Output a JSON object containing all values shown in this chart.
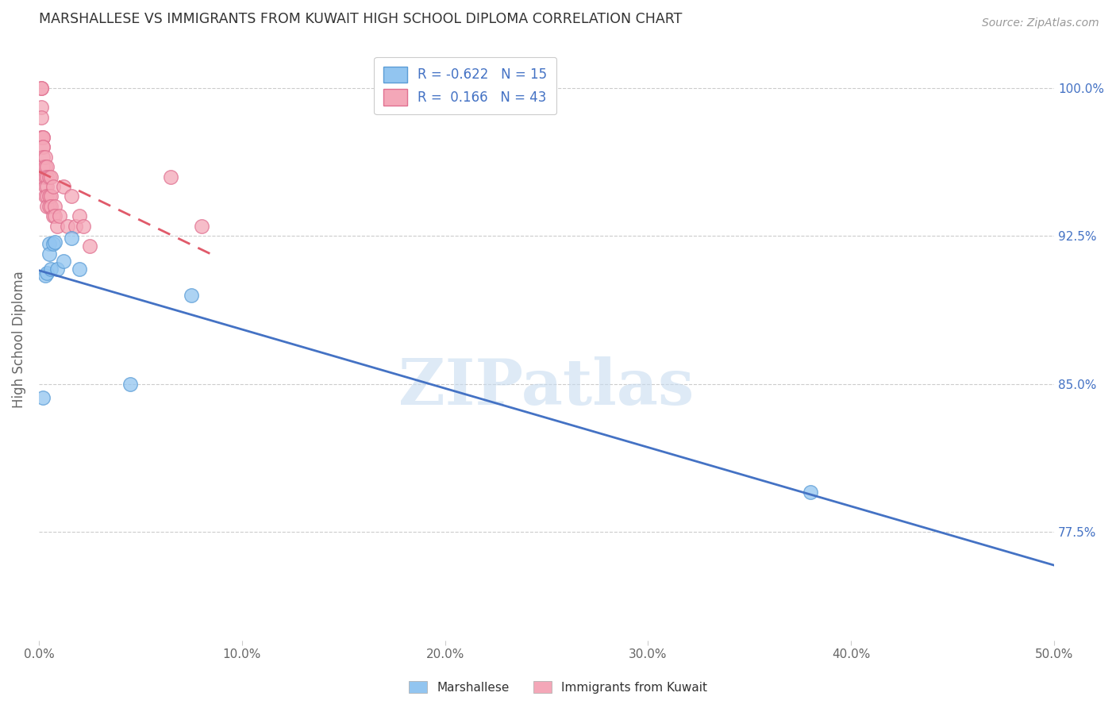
{
  "title": "MARSHALLESE VS IMMIGRANTS FROM KUWAIT HIGH SCHOOL DIPLOMA CORRELATION CHART",
  "source": "Source: ZipAtlas.com",
  "ylabel": "High School Diploma",
  "ytick_labels": [
    "100.0%",
    "92.5%",
    "85.0%",
    "77.5%"
  ],
  "ytick_values": [
    1.0,
    0.925,
    0.85,
    0.775
  ],
  "xlim": [
    0.0,
    0.5
  ],
  "ylim": [
    0.72,
    1.025
  ],
  "xtick_values": [
    0.0,
    0.1,
    0.2,
    0.3,
    0.4,
    0.5
  ],
  "xtick_labels": [
    "0.0%",
    "10.0%",
    "20.0%",
    "30.0%",
    "40.0%",
    "50.0%"
  ],
  "watermark": "ZIPatlas",
  "marshallese_x": [
    0.002,
    0.003,
    0.004,
    0.005,
    0.005,
    0.006,
    0.007,
    0.008,
    0.009,
    0.012,
    0.016,
    0.02,
    0.045,
    0.075,
    0.38
  ],
  "marshallese_y": [
    0.843,
    0.905,
    0.906,
    0.921,
    0.916,
    0.908,
    0.921,
    0.922,
    0.908,
    0.912,
    0.924,
    0.908,
    0.85,
    0.895,
    0.795
  ],
  "kuwait_x": [
    0.001,
    0.001,
    0.001,
    0.001,
    0.001,
    0.002,
    0.002,
    0.002,
    0.002,
    0.002,
    0.002,
    0.002,
    0.003,
    0.003,
    0.003,
    0.003,
    0.003,
    0.004,
    0.004,
    0.004,
    0.004,
    0.004,
    0.005,
    0.005,
    0.005,
    0.006,
    0.006,
    0.006,
    0.007,
    0.007,
    0.008,
    0.008,
    0.009,
    0.01,
    0.012,
    0.014,
    0.016,
    0.018,
    0.02,
    0.022,
    0.025,
    0.065,
    0.08
  ],
  "kuwait_y": [
    1.0,
    1.0,
    0.99,
    0.985,
    0.975,
    0.975,
    0.975,
    0.97,
    0.97,
    0.965,
    0.96,
    0.955,
    0.965,
    0.96,
    0.955,
    0.95,
    0.945,
    0.96,
    0.955,
    0.95,
    0.945,
    0.94,
    0.955,
    0.945,
    0.94,
    0.955,
    0.945,
    0.94,
    0.95,
    0.935,
    0.94,
    0.935,
    0.93,
    0.935,
    0.95,
    0.93,
    0.945,
    0.93,
    0.935,
    0.93,
    0.92,
    0.955,
    0.93
  ],
  "marshallese_color": "#92C5F0",
  "kuwait_color": "#F4A7B8",
  "marshallese_edge_color": "#5A9CD6",
  "kuwait_edge_color": "#E07090",
  "marshallese_line_color": "#4472C4",
  "kuwait_line_color": "#E05A6A",
  "R_marshallese": -0.622,
  "N_marshallese": 15,
  "R_kuwait": 0.166,
  "N_kuwait": 43,
  "legend_label_marshallese": "Marshallese",
  "legend_label_kuwait": "Immigrants from Kuwait",
  "grid_color": "#CCCCCC",
  "background_color": "#FFFFFF"
}
